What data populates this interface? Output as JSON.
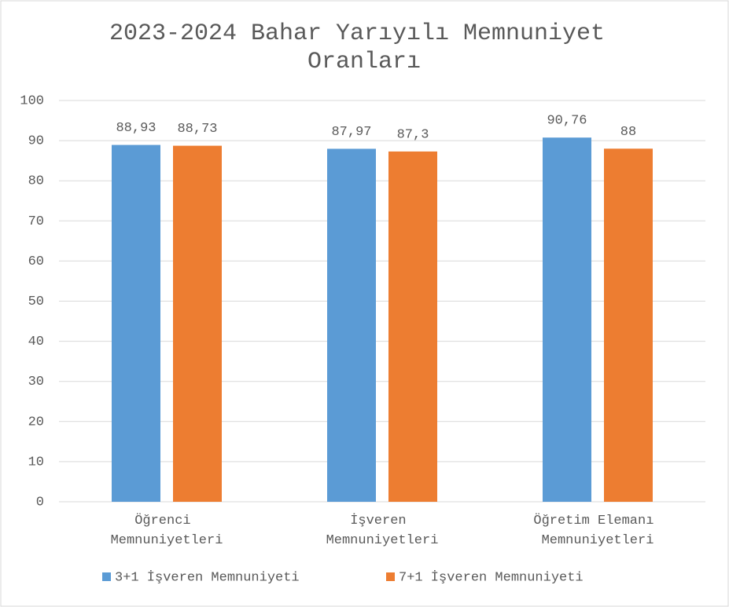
{
  "chart_data": {
    "type": "bar",
    "title": "2023-2024 Bahar Yarıyılı Memnuniyet Oranları",
    "categories": [
      "Öğrenci Memnuniyetleri",
      "İşveren Memnuniyetleri",
      "Öğretim Elemanı Memnuniyetleri"
    ],
    "series": [
      {
        "name": "3+1 İşveren Memnuniyeti",
        "color": "#5b9bd5",
        "values": [
          88.93,
          87.97,
          90.76
        ],
        "value_labels": [
          "88,93",
          "87,97",
          "90,76"
        ]
      },
      {
        "name": "7+1 İşveren Memnuniyeti",
        "color": "#ed7d31",
        "values": [
          88.73,
          87.3,
          88
        ],
        "value_labels": [
          "88,73",
          "87,3",
          "88"
        ]
      }
    ],
    "ylim": [
      0,
      100
    ],
    "yticks": [
      0,
      10,
      20,
      30,
      40,
      50,
      60,
      70,
      80,
      90,
      100
    ],
    "grid": true,
    "legend": "bottom"
  }
}
